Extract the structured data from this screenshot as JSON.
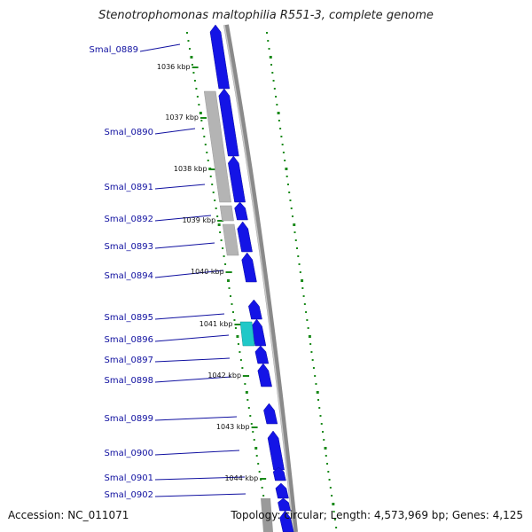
{
  "title": "Stenotrophomonas maltophilia R551-3, complete genome",
  "footer": {
    "accession": "Accession: NC_011071",
    "summary": "Topology: circular; Length: 4,573,969 bp; Genes: 4,125"
  },
  "colors": {
    "forward_cds": "#1414e6",
    "highlighted_cds": "#20c8c8",
    "pseudo_cds": "#b4b4b4",
    "backbone": "#888888",
    "gc_ticks": "#1a8a1a",
    "label": "#1010a0"
  },
  "gene_labels": [
    {
      "name": "Smal_0889"
    },
    {
      "name": "Smal_0890"
    },
    {
      "name": "Smal_0891"
    },
    {
      "name": "Smal_0892"
    },
    {
      "name": "Smal_0893"
    },
    {
      "name": "Smal_0894"
    },
    {
      "name": "Smal_0895"
    },
    {
      "name": "Smal_0896"
    },
    {
      "name": "Smal_0897"
    },
    {
      "name": "Smal_0898"
    },
    {
      "name": "Smal_0899"
    },
    {
      "name": "Smal_0900"
    },
    {
      "name": "Smal_0901"
    },
    {
      "name": "Smal_0902"
    }
  ],
  "kbp_ticks": [
    "1036 kbp",
    "1037 kbp",
    "1038 kbp",
    "1039 kbp",
    "1040 kbp",
    "1041 kbp",
    "1042 kbp",
    "1043 kbp",
    "1044 kbp"
  ]
}
